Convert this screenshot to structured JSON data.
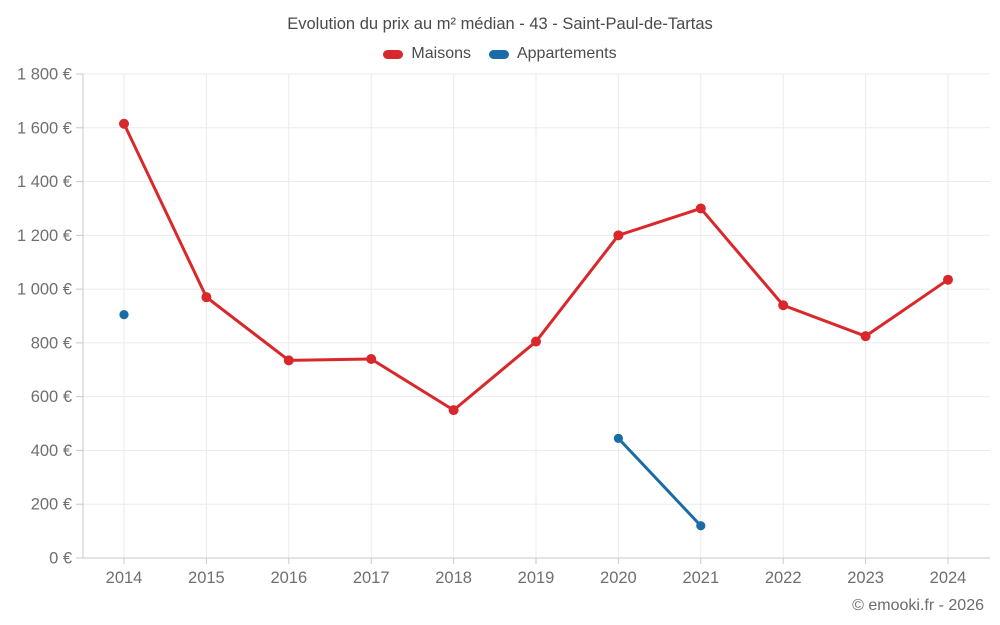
{
  "chart": {
    "footer": "© emooki.fr - 2026"
  },
  "chart_data": {
    "type": "line",
    "title": "Evolution du prix au m² médian - 43 - Saint-Paul-de-Tartas",
    "categories": [
      "2014",
      "2015",
      "2016",
      "2017",
      "2018",
      "2019",
      "2020",
      "2021",
      "2022",
      "2023",
      "2024"
    ],
    "series": [
      {
        "name": "Maisons",
        "color": "#d9282c",
        "point_radius": 5,
        "values": [
          1615,
          970,
          735,
          740,
          550,
          805,
          1200,
          1300,
          940,
          825,
          1035
        ]
      },
      {
        "name": "Appartements",
        "color": "#1a6ca6",
        "point_radius": 4.6,
        "values": [
          905,
          null,
          null,
          null,
          null,
          null,
          445,
          120,
          null,
          null,
          null
        ]
      }
    ],
    "xlabel": "",
    "ylabel": "",
    "ylim": [
      0,
      1800
    ],
    "y_tick_step": 200,
    "y_ticks": [
      0,
      200,
      400,
      600,
      800,
      1000,
      1200,
      1400,
      1600,
      1800
    ],
    "y_tick_labels": [
      "0 €",
      "200 €",
      "400 €",
      "600 €",
      "800 €",
      "1 000 €",
      "1 200 €",
      "1 400 €",
      "1 600 €",
      "1 800 €"
    ],
    "grid": true,
    "legend_position": "top",
    "axis_color": "#c9c9c9",
    "grid_color": "#ebebeb",
    "tick_label_color": "#6f6f6f"
  }
}
